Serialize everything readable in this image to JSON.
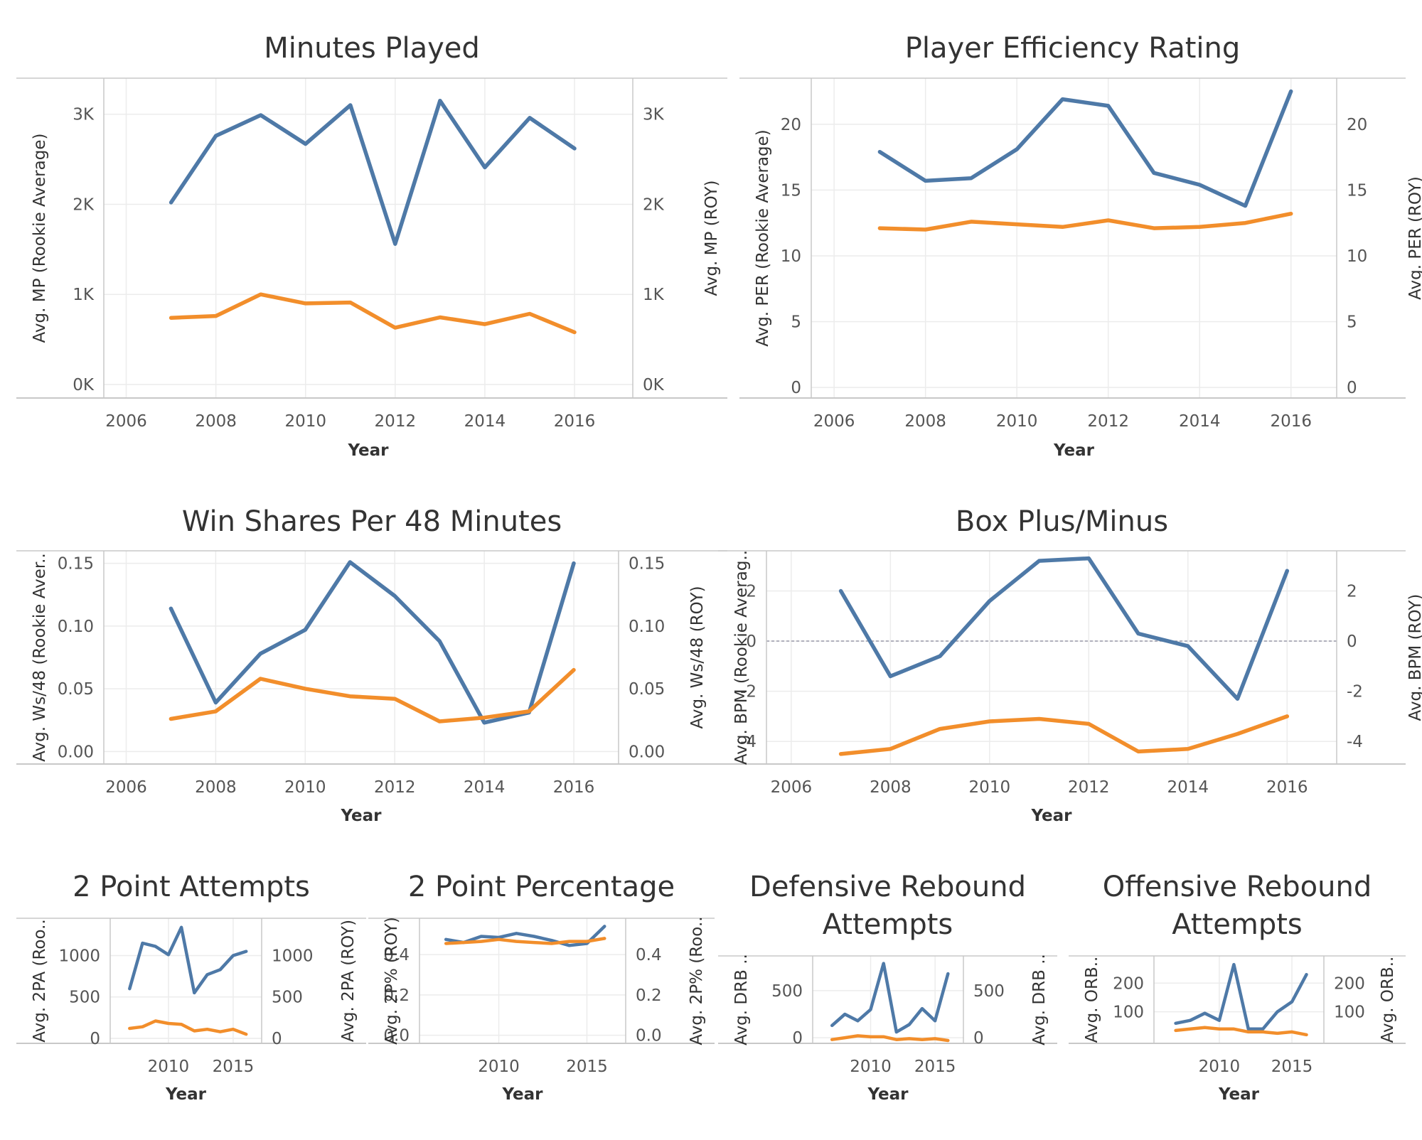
{
  "colors": {
    "rookie": "#4e79a7",
    "roy": "#f28e2b",
    "grid": "#ececec",
    "axis": "#c8c8c8",
    "zero": "#9a9aaa"
  },
  "chart_data": [
    {
      "type": "line",
      "title": "Minutes Played",
      "title_lines": [
        "Minutes Played"
      ],
      "xlabel": "Year",
      "ylabel_left": "Avg. MP (Rookie Average)",
      "ylabel_right": "Avg. MP (ROY)",
      "xlim": [
        2005.5,
        2017.3
      ],
      "ylim_left": [
        -150,
        3400
      ],
      "ylim_right": [
        -150,
        3400
      ],
      "xticks": [
        2006,
        2008,
        2010,
        2012,
        2014,
        2016
      ],
      "xtick_labels": [
        "2006",
        "2008",
        "2010",
        "2012",
        "2014",
        "2016"
      ],
      "yticks": [
        0,
        1000,
        2000,
        3000
      ],
      "ytick_labels_left": [
        "0K",
        "1K",
        "2K",
        "3K"
      ],
      "ytick_labels_right": [
        "0K",
        "1K",
        "2K",
        "3K"
      ],
      "zero_line": false,
      "series": [
        {
          "name": "ROY",
          "axis": "left",
          "color": "#4e79a7",
          "x": [
            2007,
            2008,
            2009,
            2010,
            2011,
            2012,
            2013,
            2014,
            2015,
            2016
          ],
          "y": [
            2020,
            2760,
            2990,
            2670,
            3100,
            1560,
            3150,
            2410,
            2960,
            2620
          ]
        },
        {
          "name": "Rookie Average",
          "axis": "right",
          "color": "#f28e2b",
          "x": [
            2007,
            2008,
            2009,
            2010,
            2011,
            2012,
            2013,
            2014,
            2015,
            2016
          ],
          "y": [
            740,
            760,
            1000,
            900,
            910,
            630,
            745,
            670,
            785,
            580
          ]
        }
      ]
    },
    {
      "type": "line",
      "title": "Player Efficiency Rating",
      "title_lines": [
        "Player Efficiency Rating"
      ],
      "xlabel": "Year",
      "ylabel_left": "Avg. PER (Rookie Average)",
      "ylabel_right": "Avg. PER (ROY)",
      "xlim": [
        2005.5,
        2017.0
      ],
      "ylim_left": [
        -0.8,
        23.5
      ],
      "ylim_right": [
        -0.8,
        23.5
      ],
      "xticks": [
        2006,
        2008,
        2010,
        2012,
        2014,
        2016
      ],
      "xtick_labels": [
        "2006",
        "2008",
        "2010",
        "2012",
        "2014",
        "2016"
      ],
      "yticks": [
        0,
        5,
        10,
        15,
        20
      ],
      "ytick_labels_left": [
        "0",
        "5",
        "10",
        "15",
        "20"
      ],
      "ytick_labels_right": [
        "0",
        "5",
        "10",
        "15",
        "20"
      ],
      "zero_line": false,
      "series": [
        {
          "name": "ROY",
          "axis": "left",
          "color": "#4e79a7",
          "x": [
            2007,
            2008,
            2009,
            2010,
            2011,
            2012,
            2013,
            2014,
            2015,
            2016
          ],
          "y": [
            17.9,
            15.7,
            15.9,
            18.1,
            21.9,
            21.4,
            16.3,
            15.4,
            13.8,
            22.5
          ]
        },
        {
          "name": "Rookie Average",
          "axis": "right",
          "color": "#f28e2b",
          "x": [
            2007,
            2008,
            2009,
            2010,
            2011,
            2012,
            2013,
            2014,
            2015,
            2016
          ],
          "y": [
            12.1,
            12.0,
            12.6,
            12.4,
            12.2,
            12.7,
            12.1,
            12.2,
            12.5,
            13.2
          ]
        }
      ]
    },
    {
      "type": "line",
      "title": "Win Shares Per 48 Minutes",
      "title_lines": [
        "Win Shares Per 48 Minutes"
      ],
      "xlabel": "Year",
      "ylabel_left": "Avg. Ws/48 (Rookie Aver..",
      "ylabel_right": "Avg. Ws/48 (ROY)",
      "xlim": [
        2005.5,
        2017.0
      ],
      "ylim_left": [
        -0.01,
        0.16
      ],
      "ylim_right": [
        -0.01,
        0.16
      ],
      "xticks": [
        2006,
        2008,
        2010,
        2012,
        2014,
        2016
      ],
      "xtick_labels": [
        "2006",
        "2008",
        "2010",
        "2012",
        "2014",
        "2016"
      ],
      "yticks": [
        0,
        0.05,
        0.1,
        0.15
      ],
      "ytick_labels_left": [
        "0.00",
        "0.05",
        "0.10",
        "0.15"
      ],
      "ytick_labels_right": [
        "0.00",
        "0.05",
        "0.10",
        "0.15"
      ],
      "zero_line": false,
      "series": [
        {
          "name": "ROY",
          "axis": "left",
          "color": "#4e79a7",
          "x": [
            2007,
            2008,
            2009,
            2010,
            2011,
            2012,
            2013,
            2014,
            2015,
            2016
          ],
          "y": [
            0.114,
            0.039,
            0.078,
            0.097,
            0.151,
            0.124,
            0.088,
            0.023,
            0.031,
            0.15
          ]
        },
        {
          "name": "Rookie Average",
          "axis": "right",
          "color": "#f28e2b",
          "x": [
            2007,
            2008,
            2009,
            2010,
            2011,
            2012,
            2013,
            2014,
            2015,
            2016
          ],
          "y": [
            0.026,
            0.032,
            0.058,
            0.05,
            0.044,
            0.042,
            0.024,
            0.027,
            0.032,
            0.065
          ]
        }
      ]
    },
    {
      "type": "line",
      "title": "Box Plus/Minus",
      "title_lines": [
        "Box Plus/Minus"
      ],
      "xlabel": "Year",
      "ylabel_left": "Avg. BPM (Rookie Averag..",
      "ylabel_right": "Avg. BPM (ROY)",
      "xlim": [
        2005.5,
        2017.0
      ],
      "ylim_left": [
        -4.9,
        3.6
      ],
      "ylim_right": [
        -4.9,
        3.6
      ],
      "xticks": [
        2006,
        2008,
        2010,
        2012,
        2014,
        2016
      ],
      "xtick_labels": [
        "2006",
        "2008",
        "2010",
        "2012",
        "2014",
        "2016"
      ],
      "yticks": [
        -4,
        -2,
        0,
        2
      ],
      "ytick_labels_left": [
        "-4",
        "-2",
        "0",
        "2"
      ],
      "ytick_labels_right": [
        "-4",
        "-2",
        "0",
        "2"
      ],
      "zero_line": true,
      "series": [
        {
          "name": "ROY",
          "axis": "left",
          "color": "#4e79a7",
          "x": [
            2007,
            2008,
            2009,
            2010,
            2011,
            2012,
            2013,
            2014,
            2015,
            2016
          ],
          "y": [
            2.0,
            -1.4,
            -0.6,
            1.6,
            3.2,
            3.3,
            0.3,
            -0.2,
            -2.3,
            2.8
          ]
        },
        {
          "name": "Rookie Average",
          "axis": "right",
          "color": "#f28e2b",
          "x": [
            2007,
            2008,
            2009,
            2010,
            2011,
            2012,
            2013,
            2014,
            2015,
            2016
          ],
          "y": [
            -4.5,
            -4.3,
            -3.5,
            -3.2,
            -3.1,
            -3.3,
            -4.4,
            -4.3,
            -3.7,
            -3.0
          ]
        }
      ]
    },
    {
      "type": "line",
      "title": "2 Point Attempts",
      "title_lines": [
        "2 Point Attempts"
      ],
      "xlabel": "Year",
      "ylabel_left": "Avg. 2PA (Roo..",
      "ylabel_right": "Avg. 2PA (ROY)",
      "xlim": [
        2005.5,
        2017.2
      ],
      "ylim_left": [
        -60,
        1450
      ],
      "ylim_right": [
        -60,
        1450
      ],
      "xticks": [
        2010,
        2015
      ],
      "xtick_labels": [
        "2010",
        "2015"
      ],
      "yticks": [
        0,
        500,
        1000
      ],
      "ytick_labels_left": [
        "0",
        "500",
        "1000"
      ],
      "ytick_labels_right": [
        "0",
        "500",
        "1000"
      ],
      "zero_line": false,
      "series": [
        {
          "name": "ROY",
          "axis": "left",
          "color": "#4e79a7",
          "x": [
            2007,
            2008,
            2009,
            2010,
            2011,
            2012,
            2013,
            2014,
            2015,
            2016
          ],
          "y": [
            600,
            1150,
            1110,
            1010,
            1340,
            550,
            770,
            830,
            1000,
            1050
          ]
        },
        {
          "name": "Rookie Average",
          "axis": "right",
          "color": "#f28e2b",
          "x": [
            2007,
            2008,
            2009,
            2010,
            2011,
            2012,
            2013,
            2014,
            2015,
            2016
          ],
          "y": [
            120,
            140,
            210,
            180,
            170,
            90,
            110,
            80,
            110,
            50
          ]
        }
      ]
    },
    {
      "type": "line",
      "title": "2 Point Percentage",
      "title_lines": [
        "2 Point Percentage"
      ],
      "xlabel": "Year",
      "ylabel_left": "Avg. 2P% (ROY)",
      "ylabel_right": "Avg. 2P% (Roo..",
      "xlim": [
        2005.5,
        2017.2
      ],
      "ylim_left": [
        -0.04,
        0.58
      ],
      "ylim_right": [
        -0.04,
        0.58
      ],
      "xticks": [
        2010,
        2015
      ],
      "xtick_labels": [
        "2010",
        "2015"
      ],
      "yticks": [
        0,
        0.2,
        0.4
      ],
      "ytick_labels_left": [
        "0.0",
        "0.2",
        "0.4"
      ],
      "ytick_labels_right": [
        "0.0",
        "0.2",
        "0.4"
      ],
      "zero_line": false,
      "series": [
        {
          "name": "ROY",
          "axis": "left",
          "color": "#4e79a7",
          "x": [
            2007,
            2008,
            2009,
            2010,
            2011,
            2012,
            2013,
            2014,
            2015,
            2016
          ],
          "y": [
            0.475,
            0.46,
            0.49,
            0.485,
            0.505,
            0.49,
            0.47,
            0.445,
            0.455,
            0.54
          ]
        },
        {
          "name": "Rookie Average",
          "axis": "right",
          "color": "#f28e2b",
          "x": [
            2007,
            2008,
            2009,
            2010,
            2011,
            2012,
            2013,
            2014,
            2015,
            2016
          ],
          "y": [
            0.455,
            0.46,
            0.465,
            0.475,
            0.465,
            0.46,
            0.455,
            0.465,
            0.465,
            0.48
          ]
        }
      ]
    },
    {
      "type": "line",
      "title": "Defensive Rebound Attempts",
      "title_lines": [
        "Defensive Rebound",
        "Attempts"
      ],
      "xlabel": "Year",
      "ylabel_left": "Avg. DRB ..",
      "ylabel_right": "Avg. DRB ..",
      "xlim": [
        2005.5,
        2017.2
      ],
      "ylim_left": [
        -60,
        870
      ],
      "ylim_right": [
        -60,
        870
      ],
      "xticks": [
        2010,
        2015
      ],
      "xtick_labels": [
        "2010",
        "2015"
      ],
      "yticks": [
        0,
        500
      ],
      "ytick_labels_left": [
        "0",
        "500"
      ],
      "ytick_labels_right": [
        "0",
        "500"
      ],
      "zero_line": false,
      "series": [
        {
          "name": "ROY",
          "axis": "left",
          "color": "#4e79a7",
          "x": [
            2007,
            2008,
            2009,
            2010,
            2011,
            2012,
            2013,
            2014,
            2015,
            2016
          ],
          "y": [
            130,
            250,
            180,
            300,
            790,
            60,
            140,
            310,
            180,
            680
          ]
        },
        {
          "name": "Rookie Average",
          "axis": "right",
          "color": "#f28e2b",
          "x": [
            2007,
            2008,
            2009,
            2010,
            2011,
            2012,
            2013,
            2014,
            2015,
            2016
          ],
          "y": [
            -20,
            0,
            20,
            10,
            10,
            -20,
            -10,
            -20,
            -10,
            -30
          ]
        }
      ]
    },
    {
      "type": "line",
      "title": "Offensive Rebound Attempts",
      "title_lines": [
        "Offensive Rebound",
        "Attempts"
      ],
      "xlabel": "Year",
      "ylabel_left": "Avg. ORB..",
      "ylabel_right": "Avg. ORB..",
      "xlim": [
        2005.5,
        2017.2
      ],
      "ylim_left": [
        -10,
        295
      ],
      "ylim_right": [
        -10,
        295
      ],
      "xticks": [
        2010,
        2015
      ],
      "xtick_labels": [
        "2010",
        "2015"
      ],
      "yticks": [
        100,
        200
      ],
      "ytick_labels_left": [
        "100",
        "200"
      ],
      "ytick_labels_right": [
        "100",
        "200"
      ],
      "zero_line": false,
      "series": [
        {
          "name": "ROY",
          "axis": "left",
          "color": "#4e79a7",
          "x": [
            2007,
            2008,
            2009,
            2010,
            2011,
            2012,
            2013,
            2014,
            2015,
            2016
          ],
          "y": [
            60,
            70,
            95,
            70,
            265,
            40,
            40,
            100,
            135,
            230
          ]
        },
        {
          "name": "Rookie Average",
          "axis": "right",
          "color": "#f28e2b",
          "x": [
            2007,
            2008,
            2009,
            2010,
            2011,
            2012,
            2013,
            2014,
            2015,
            2016
          ],
          "y": [
            35,
            40,
            45,
            40,
            40,
            30,
            30,
            25,
            30,
            20
          ]
        }
      ]
    }
  ]
}
